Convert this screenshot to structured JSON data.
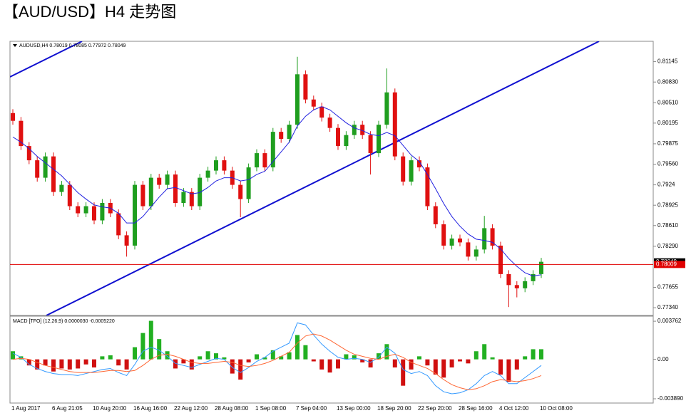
{
  "chart_data": [
    {
      "type": "candlestick",
      "title": "【AUD/USD】H4 走势图",
      "header": "AUDUSD,H4  0.78019 0.78085 0.77972 0.78049",
      "categories": [
        "1 Aug 2017",
        null,
        null,
        null,
        null,
        "6 Aug 21:05",
        null,
        null,
        null,
        null,
        "10 Aug 20:00",
        null,
        null,
        null,
        null,
        "16 Aug 16:00",
        null,
        null,
        null,
        null,
        "22 Aug 12:00",
        null,
        null,
        null,
        null,
        "28 Aug 08:00",
        null,
        null,
        null,
        null,
        "1 Sep 08:00",
        null,
        null,
        null,
        null,
        "7 Sep 04:00",
        null,
        null,
        null,
        null,
        "13 Sep 00:00",
        null,
        null,
        null,
        null,
        "18 Sep 20:00",
        null,
        null,
        null,
        null,
        "22 Sep 20:00",
        null,
        null,
        null,
        null,
        "28 Sep 16:00",
        null,
        null,
        null,
        null,
        "4 Oct 12:00",
        null,
        null,
        null,
        null,
        "10 Oct 08:00"
      ],
      "open": [
        0.8035,
        0.8023,
        0.7984,
        0.7962,
        0.7935,
        0.7968,
        0.7913,
        0.7924,
        0.7891,
        0.788,
        0.7891,
        0.7869,
        0.7896,
        0.788,
        0.7846,
        0.783,
        0.7924,
        0.7891,
        0.7935,
        0.7924,
        0.794,
        0.7896,
        0.7913,
        0.7891,
        0.7935,
        0.7946,
        0.7962,
        0.7946,
        0.7924,
        0.7902,
        0.7951,
        0.7973,
        0.7951,
        0.8006,
        0.7995,
        0.8017,
        0.8095,
        0.8056,
        0.8045,
        0.8028,
        0.8012,
        0.7984,
        0.8001,
        0.8017,
        0.8001,
        0.7973,
        0.8017,
        0.8067,
        0.7968,
        0.7929,
        0.7962,
        0.7951,
        0.7891,
        0.7863,
        0.783,
        0.7841,
        0.7835,
        0.7813,
        0.7824,
        0.7857,
        0.783,
        0.7786,
        0.7769,
        0.7764,
        0.7775,
        0.7786
      ],
      "high": [
        0.8041,
        0.8029,
        0.799,
        0.7968,
        0.7974,
        0.7974,
        0.793,
        0.793,
        0.7897,
        0.7897,
        0.7897,
        0.7902,
        0.7902,
        0.7886,
        0.7852,
        0.793,
        0.793,
        0.7941,
        0.7941,
        0.7946,
        0.7946,
        0.7919,
        0.7919,
        0.7941,
        0.7952,
        0.7968,
        0.7968,
        0.7952,
        0.793,
        0.7957,
        0.7979,
        0.7979,
        0.8012,
        0.8012,
        0.8023,
        0.8122,
        0.8101,
        0.8062,
        0.8051,
        0.8034,
        0.8018,
        0.8007,
        0.8023,
        0.8023,
        0.8007,
        0.8023,
        0.8104,
        0.8073,
        0.7974,
        0.7968,
        0.7968,
        0.7957,
        0.7897,
        0.7869,
        0.7847,
        0.7847,
        0.7841,
        0.783,
        0.7876,
        0.7863,
        0.7836,
        0.7792,
        0.7775,
        0.7781,
        0.7792,
        0.7811
      ],
      "low": [
        0.8017,
        0.7978,
        0.7956,
        0.7929,
        0.7929,
        0.7907,
        0.7907,
        0.7885,
        0.7874,
        0.7874,
        0.7863,
        0.7863,
        0.7874,
        0.784,
        0.7813,
        0.7824,
        0.7885,
        0.7885,
        0.7918,
        0.7918,
        0.789,
        0.789,
        0.7885,
        0.7885,
        0.7929,
        0.794,
        0.794,
        0.7918,
        0.7874,
        0.7896,
        0.7945,
        0.7945,
        0.7945,
        0.7989,
        0.7989,
        0.8011,
        0.805,
        0.8039,
        0.8022,
        0.8006,
        0.7978,
        0.7978,
        0.7995,
        0.7995,
        0.794,
        0.7967,
        0.8011,
        0.7962,
        0.7923,
        0.7923,
        0.7945,
        0.7885,
        0.7857,
        0.7824,
        0.7824,
        0.7829,
        0.7807,
        0.7807,
        0.7818,
        0.7824,
        0.778,
        0.7735,
        0.775,
        0.7758,
        0.7769,
        0.778
      ],
      "close": [
        0.8023,
        0.7984,
        0.7962,
        0.7935,
        0.7968,
        0.7913,
        0.7924,
        0.7891,
        0.788,
        0.7891,
        0.7869,
        0.7896,
        0.788,
        0.7846,
        0.783,
        0.7924,
        0.7891,
        0.7935,
        0.7924,
        0.794,
        0.7896,
        0.7913,
        0.7891,
        0.7935,
        0.7946,
        0.7962,
        0.7946,
        0.7924,
        0.7902,
        0.7951,
        0.7973,
        0.7951,
        0.8006,
        0.7995,
        0.8017,
        0.8095,
        0.8056,
        0.8045,
        0.8028,
        0.8012,
        0.7984,
        0.8001,
        0.8017,
        0.8001,
        0.7973,
        0.8017,
        0.8067,
        0.7968,
        0.7929,
        0.7962,
        0.7951,
        0.7891,
        0.7863,
        0.783,
        0.7841,
        0.7835,
        0.7813,
        0.7824,
        0.7857,
        0.783,
        0.7786,
        0.7769,
        0.7764,
        0.7775,
        0.7786,
        0.7805
      ],
      "ma": [
        0.7998,
        0.799,
        0.798,
        0.7968,
        0.7958,
        0.7948,
        0.7938,
        0.7925,
        0.7912,
        0.7902,
        0.7893,
        0.789,
        0.7888,
        0.788,
        0.7865,
        0.7865,
        0.7875,
        0.789,
        0.7905,
        0.7918,
        0.792,
        0.7915,
        0.791,
        0.7912,
        0.792,
        0.793,
        0.7935,
        0.7935,
        0.793,
        0.7932,
        0.794,
        0.7945,
        0.796,
        0.7975,
        0.799,
        0.8015,
        0.803,
        0.804,
        0.8045,
        0.804,
        0.803,
        0.802,
        0.8012,
        0.8008,
        0.8002,
        0.8,
        0.8005,
        0.8,
        0.7985,
        0.797,
        0.796,
        0.794,
        0.7918,
        0.7895,
        0.7875,
        0.786,
        0.7848,
        0.784,
        0.7838,
        0.7835,
        0.7825,
        0.781,
        0.7798,
        0.7788,
        0.7783,
        0.7785
      ],
      "up_color": "#1f9e1f",
      "down_color": "#e01010",
      "ma_color": "#2020e0",
      "price_line": 0.78009,
      "last_price": 0.78049,
      "ylim": [
        0.7722,
        0.8146
      ],
      "yticks": [
        0.81145,
        {
          "value": 0.8083,
          "label": "0.80830"
        },
        {
          "value": 0.8051,
          "label": "0.80510"
        },
        0.80195,
        0.79875,
        {
          "value": 0.7956,
          "label": "0.79560"
        },
        0.7924,
        0.78925,
        {
          "value": 0.7861,
          "label": "0.78610"
        },
        {
          "value": 0.7829,
          "label": "0.78290"
        },
        0.77655,
        {
          "value": 0.7734,
          "label": "0.77340"
        }
      ]
    },
    {
      "type": "macd",
      "header": "MACD [TFO] (12,26,9) 0.0000030 -0.0005220",
      "histogram": [
        0.0008,
        0.0003,
        -0.0006,
        -0.001,
        -0.0006,
        -0.0012,
        -0.0009,
        -0.001,
        -0.0009,
        -0.0005,
        -0.0008,
        0.0003,
        0.0004,
        -0.0006,
        -0.001,
        0.0012,
        0.0026,
        0.0038,
        0.002,
        0.0008,
        -0.0009,
        -0.0004,
        -0.001,
        0.0003,
        0.0008,
        0.0006,
        0.0002,
        -0.0014,
        -0.002,
        -0.0003,
        0.0005,
        0.0002,
        0.0009,
        0.0003,
        0.0007,
        0.0024,
        0.0014,
        -0.0002,
        -0.001,
        -0.0013,
        -0.0009,
        0.0005,
        0.0004,
        -0.0003,
        -0.0008,
        0.0006,
        0.0015,
        -0.0008,
        -0.0026,
        -0.001,
        0.0003,
        -0.0006,
        -0.0015,
        -0.0018,
        -0.0008,
        -0.0002,
        -0.0004,
        0.0008,
        0.0015,
        0.0002,
        -0.0015,
        -0.0022,
        -0.001,
        0.0003,
        0.001,
        0.001
      ],
      "macd": [
        0.0006,
        0.0002,
        -0.0005,
        -0.0009,
        -0.0012,
        -0.0014,
        -0.0015,
        -0.0015,
        -0.0016,
        -0.0014,
        -0.0012,
        -0.001,
        -0.0009,
        -0.0013,
        -0.0016,
        -0.0005,
        0.0008,
        0.0012,
        0.0009,
        0.0003,
        -0.0004,
        -0.0006,
        -0.0008,
        -0.0005,
        -0.0002,
        0.0001,
        0,
        -0.0008,
        -0.0013,
        -0.0008,
        -0.0002,
        0.0002,
        0.0008,
        0.0012,
        0.0016,
        0.0036,
        0.0034,
        0.0024,
        0.0015,
        0.0008,
        0.0002,
        0,
        0.0001,
        0,
        -0.0003,
        0.0002,
        0.0012,
        0.0006,
        -0.001,
        -0.0014,
        -0.0012,
        -0.0016,
        -0.0026,
        -0.0032,
        -0.0034,
        -0.0033,
        -0.003,
        -0.0024,
        -0.0016,
        -0.0012,
        -0.0016,
        -0.0024,
        -0.0024,
        -0.0018,
        -0.0012,
        -0.0006
      ],
      "signal": [
        0,
        0.0001,
        0,
        -0.0003,
        -0.0006,
        -0.0008,
        -0.001,
        -0.0012,
        -0.0013,
        -0.0013,
        -0.0013,
        -0.0012,
        -0.0011,
        -0.0011,
        -0.0012,
        -0.0011,
        -0.0006,
        0,
        0.0004,
        0.0005,
        0.0003,
        0,
        -0.0003,
        -0.0004,
        -0.0004,
        -0.0003,
        -0.0002,
        -0.0003,
        -0.0006,
        -0.0007,
        -0.0006,
        -0.0004,
        -0.0001,
        0.0003,
        0.0007,
        0.0016,
        0.0023,
        0.0025,
        0.0023,
        0.0019,
        0.0014,
        0.0009,
        0.0005,
        0.0003,
        0.0001,
        0,
        0.0003,
        0.0005,
        0.0002,
        -0.0003,
        -0.0006,
        -0.0009,
        -0.0014,
        -0.002,
        -0.0025,
        -0.0028,
        -0.003,
        -0.0029,
        -0.0026,
        -0.0022,
        -0.002,
        -0.0021,
        -0.0022,
        -0.0021,
        -0.0019,
        -0.0016
      ],
      "up_color": "#22b022",
      "down_color": "#d01010",
      "macd_color": "#3399ff",
      "signal_color": "#ff6633",
      "ylim": [
        -0.00431,
        0.00426
      ],
      "yticks": [
        0.003762,
        {
          "value": 0,
          "label": "0.00"
        },
        {
          "value": -0.00389,
          "label": "-0.003890"
        }
      ]
    }
  ]
}
